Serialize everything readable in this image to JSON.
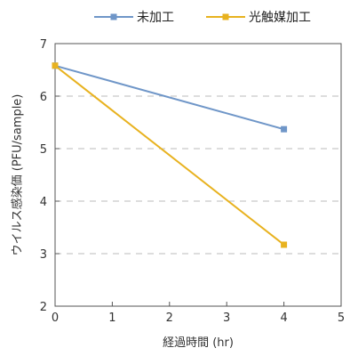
{
  "chart_data": {
    "type": "line",
    "xlabel": "経過時間 (hr)",
    "ylabel": "ウイルス感染価 (PFU/sample)",
    "xlim": [
      0,
      5
    ],
    "ylim": [
      2,
      7
    ],
    "xticks": [
      0,
      1,
      2,
      3,
      4,
      5
    ],
    "yticks": [
      2,
      3,
      4,
      5,
      6,
      7
    ],
    "grid": "horizontal dashed",
    "legend_position": "top",
    "series": [
      {
        "name": "未加工",
        "color": "#6f96c8",
        "marker": "square",
        "x": [
          0,
          4
        ],
        "y": [
          6.58,
          5.37
        ]
      },
      {
        "name": "光触媒加工",
        "color": "#e8b21f",
        "marker": "square",
        "x": [
          0,
          4
        ],
        "y": [
          6.58,
          3.17
        ]
      }
    ]
  }
}
